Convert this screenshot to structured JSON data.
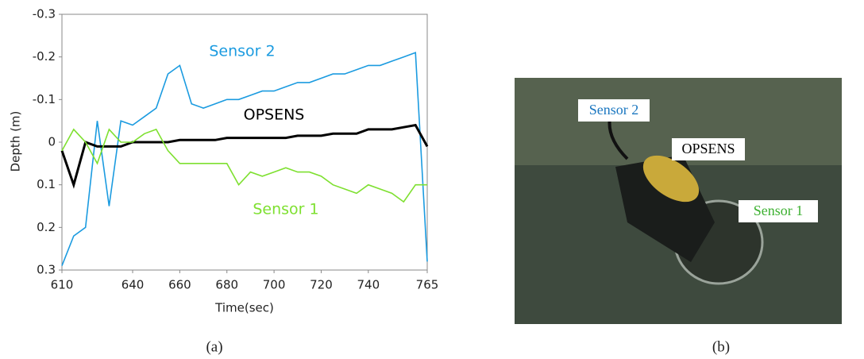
{
  "chart_data": {
    "type": "line",
    "y_label": "Depth (m)",
    "x_label": "Time(sec)",
    "x": [
      610,
      615,
      620,
      625,
      630,
      635,
      640,
      645,
      650,
      655,
      660,
      665,
      670,
      675,
      680,
      685,
      690,
      695,
      700,
      705,
      710,
      715,
      720,
      725,
      730,
      735,
      740,
      745,
      750,
      755,
      760,
      765
    ],
    "series": [
      {
        "name": "Sensor 2",
        "color": "#1b9be0",
        "values": [
          0.29,
          0.22,
          0.2,
          -0.05,
          0.15,
          -0.05,
          -0.04,
          -0.06,
          -0.08,
          -0.16,
          -0.18,
          -0.09,
          -0.08,
          -0.09,
          -0.1,
          -0.1,
          -0.11,
          -0.12,
          -0.12,
          -0.13,
          -0.14,
          -0.14,
          -0.15,
          -0.16,
          -0.16,
          -0.17,
          -0.18,
          -0.18,
          -0.19,
          -0.2,
          -0.21,
          0.28
        ]
      },
      {
        "name": "OPSENS",
        "color": "#000000",
        "values": [
          0.02,
          0.1,
          0,
          0.01,
          0.01,
          0.01,
          0,
          0,
          0,
          0,
          -0.005,
          -0.005,
          -0.005,
          -0.005,
          -0.01,
          -0.01,
          -0.01,
          -0.01,
          -0.01,
          -0.01,
          -0.015,
          -0.015,
          -0.015,
          -0.02,
          -0.02,
          -0.02,
          -0.03,
          -0.03,
          -0.03,
          -0.035,
          -0.04,
          0.01
        ]
      },
      {
        "name": "Sensor 1",
        "color": "#7ee030",
        "values": [
          0.02,
          -0.03,
          0,
          0.05,
          -0.03,
          0,
          0,
          -0.02,
          -0.03,
          0.02,
          0.05,
          0.05,
          0.05,
          0.05,
          0.05,
          0.1,
          0.07,
          0.08,
          0.07,
          0.06,
          0.07,
          0.07,
          0.08,
          0.1,
          0.11,
          0.12,
          0.1,
          0.11,
          0.12,
          0.14,
          0.1,
          0.1
        ]
      }
    ],
    "xlim": [
      610,
      765
    ],
    "xticks": [
      610,
      640,
      660,
      680,
      700,
      720,
      740,
      765
    ],
    "ylim": [
      0.3,
      -0.3
    ],
    "yticks": [
      -0.3,
      -0.2,
      -0.1,
      0,
      0.1,
      0.2,
      0.3
    ],
    "inverted_y": true
  },
  "photo": {
    "labels": [
      "Sensor 2",
      "OPSENS",
      "Sensor 1"
    ]
  },
  "captions": [
    "(a)",
    "(b)"
  ]
}
